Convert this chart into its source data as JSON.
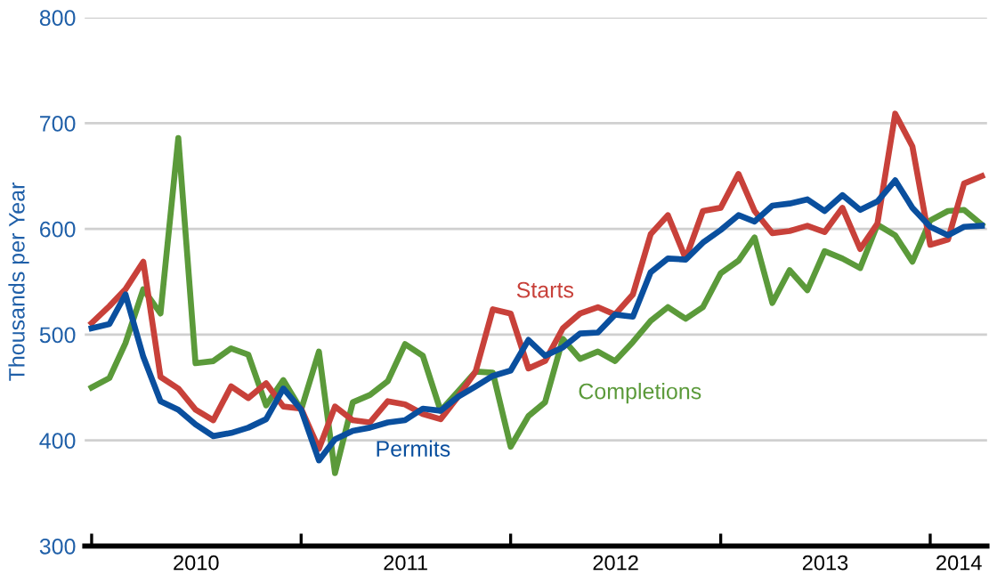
{
  "chart_data": {
    "type": "line",
    "ylabel": "Thousands per Year",
    "x": [
      "2010-01",
      "2010-02",
      "2010-03",
      "2010-04",
      "2010-05",
      "2010-06",
      "2010-07",
      "2010-08",
      "2010-09",
      "2010-10",
      "2010-11",
      "2010-12",
      "2011-01",
      "2011-02",
      "2011-03",
      "2011-04",
      "2011-05",
      "2011-06",
      "2011-07",
      "2011-08",
      "2011-09",
      "2011-10",
      "2011-11",
      "2011-12",
      "2012-01",
      "2012-02",
      "2012-03",
      "2012-04",
      "2012-05",
      "2012-06",
      "2012-07",
      "2012-08",
      "2012-09",
      "2012-10",
      "2012-11",
      "2012-12",
      "2013-01",
      "2013-02",
      "2013-03",
      "2013-04",
      "2013-05",
      "2013-06",
      "2013-07",
      "2013-08",
      "2013-09",
      "2013-10",
      "2013-11",
      "2013-12",
      "2014-01",
      "2014-02",
      "2014-03",
      "2014-04"
    ],
    "series": [
      {
        "name": "Completions",
        "color": "#5b9a3a",
        "values": [
          450,
          459,
          492,
          543,
          520,
          686,
          473,
          475,
          487,
          481,
          433,
          457,
          429,
          484,
          369,
          436,
          443,
          456,
          491,
          480,
          428,
          446,
          465,
          464,
          394,
          423,
          436,
          496,
          477,
          484,
          475,
          493,
          513,
          526,
          515,
          526,
          558,
          570,
          592,
          530,
          561,
          542,
          579,
          572,
          563,
          604,
          594,
          569,
          608,
          617,
          618,
          604
        ]
      },
      {
        "name": "Starts",
        "color": "#c8413a",
        "values": [
          511,
          527,
          543,
          569,
          460,
          449,
          429,
          419,
          451,
          440,
          454,
          432,
          430,
          392,
          432,
          419,
          417,
          437,
          434,
          425,
          420,
          441,
          465,
          524,
          520,
          468,
          475,
          506,
          520,
          526,
          519,
          538,
          595,
          613,
          572,
          617,
          620,
          652,
          617,
          596,
          598,
          603,
          597,
          620,
          581,
          605,
          709,
          678,
          585,
          590,
          643,
          650
        ]
      },
      {
        "name": "Permits",
        "color": "#0a4f9e",
        "values": [
          506,
          510,
          538,
          479,
          437,
          429,
          415,
          404,
          407,
          412,
          420,
          449,
          429,
          381,
          401,
          409,
          412,
          417,
          419,
          430,
          428,
          441,
          451,
          461,
          466,
          495,
          480,
          488,
          501,
          502,
          519,
          517,
          559,
          572,
          571,
          587,
          599,
          613,
          607,
          622,
          624,
          628,
          617,
          632,
          618,
          626,
          646,
          620,
          602,
          594,
          602,
          603
        ]
      }
    ],
    "xlim": [
      "2009-12-20",
      "2014-04-10"
    ],
    "xticks": [
      {
        "value": "2010-01-01",
        "label": null
      },
      {
        "value": "2010-07-02",
        "label": "2010"
      },
      {
        "value": "2011-01-01",
        "label": null
      },
      {
        "value": "2011-07-02",
        "label": "2011"
      },
      {
        "value": "2012-01-01",
        "label": null
      },
      {
        "value": "2012-07-02",
        "label": "2012"
      },
      {
        "value": "2013-01-01",
        "label": null
      },
      {
        "value": "2013-07-02",
        "label": "2013"
      },
      {
        "value": "2014-01-01",
        "label": null
      },
      {
        "value": "2014-02-20",
        "label": "2014"
      }
    ],
    "ylim": [
      300,
      800
    ],
    "yticks": [
      300,
      400,
      500,
      600,
      700,
      800
    ],
    "grid": "y",
    "legend": false,
    "marker": "none",
    "line_style": "solid"
  }
}
